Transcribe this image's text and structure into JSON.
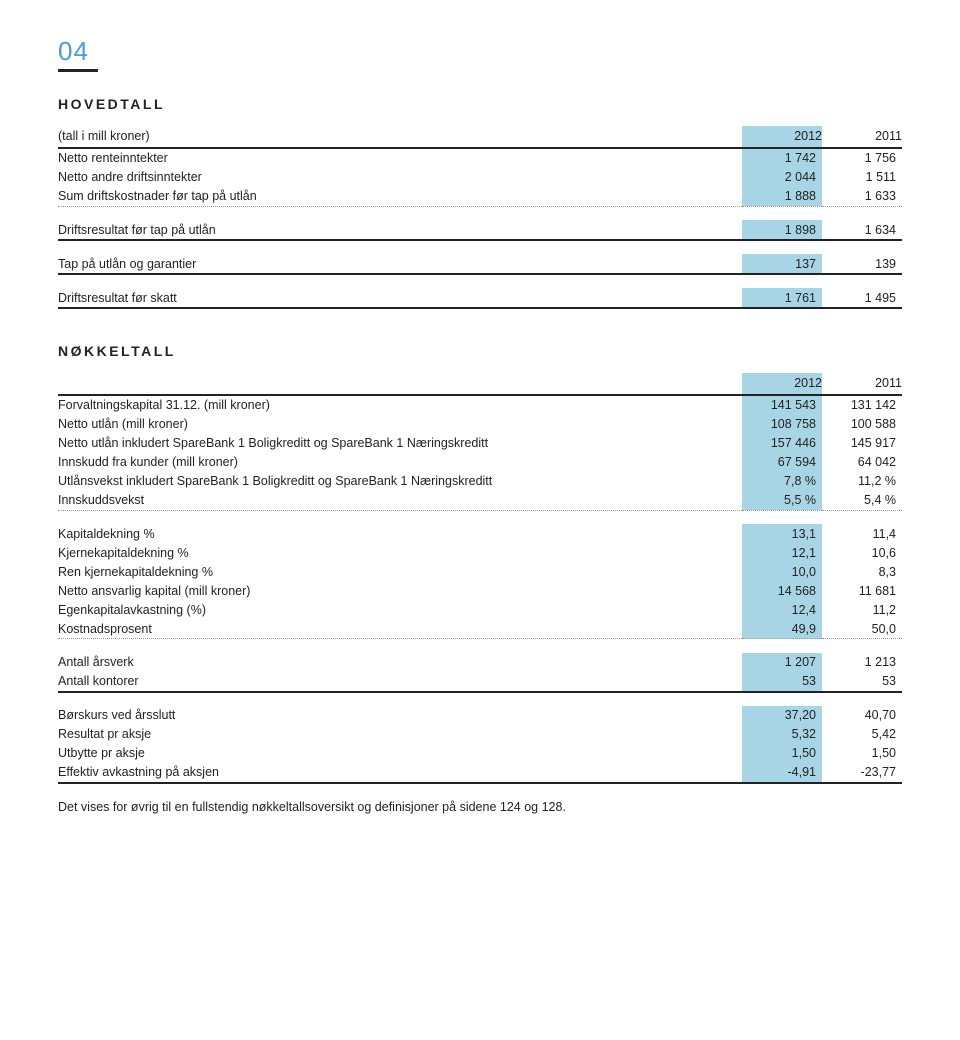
{
  "page_number": "04",
  "section1_title": "HOVEDTALL",
  "section1_subtitle": "(tall i mill kroner)",
  "year_a": "2012",
  "year_b": "2011",
  "hovedtall_rows": [
    {
      "label": "Netto renteinntekter",
      "a": "1 742",
      "b": "1 756",
      "border": "none"
    },
    {
      "label": "Netto andre driftsinntekter",
      "a": "2 044",
      "b": "1 511",
      "border": "none"
    },
    {
      "label": "Sum driftskostnader før tap på utlån",
      "a": "1 888",
      "b": "1 633",
      "border": "dot"
    },
    {
      "label": "",
      "a": "",
      "b": "",
      "border": "gap"
    },
    {
      "label": "Driftsresultat før tap på utlån",
      "a": "1 898",
      "b": "1 634",
      "border": "thick"
    },
    {
      "label": "",
      "a": "",
      "b": "",
      "border": "gap"
    },
    {
      "label": "Tap på utlån og garantier",
      "a": "137",
      "b": "139",
      "border": "thick"
    },
    {
      "label": "",
      "a": "",
      "b": "",
      "border": "gap"
    },
    {
      "label": "Driftsresultat før skatt",
      "a": "1 761",
      "b": "1 495",
      "border": "thick"
    }
  ],
  "section2_title": "NØKKELTALL",
  "nokkeltall_rows": [
    {
      "label": "Forvaltningskapital 31.12. (mill kroner)",
      "a": "141 543",
      "b": "131 142",
      "border": "none"
    },
    {
      "label": "Netto utlån (mill kroner)",
      "a": "108 758",
      "b": "100 588",
      "border": "none"
    },
    {
      "label": "Netto utlån inkludert SpareBank 1 Boligkreditt og SpareBank 1 Næringskreditt",
      "a": "157 446",
      "b": "145 917",
      "border": "none"
    },
    {
      "label": "Innskudd fra kunder (mill kroner)",
      "a": "67 594",
      "b": "64 042",
      "border": "none"
    },
    {
      "label": "Utlånsvekst inkludert SpareBank 1 Boligkreditt og SpareBank 1 Næringskreditt",
      "a": "7,8 %",
      "b": "11,2 %",
      "border": "none"
    },
    {
      "label": "Innskuddsvekst",
      "a": "5,5 %",
      "b": "5,4 %",
      "border": "dot"
    },
    {
      "label": "",
      "a": "",
      "b": "",
      "border": "gap"
    },
    {
      "label": "Kapitaldekning %",
      "a": "13,1",
      "b": "11,4",
      "border": "none"
    },
    {
      "label": "Kjernekapitaldekning %",
      "a": "12,1",
      "b": "10,6",
      "border": "none"
    },
    {
      "label": "Ren kjernekapitaldekning %",
      "a": "10,0",
      "b": "8,3",
      "border": "none"
    },
    {
      "label": "Netto ansvarlig kapital (mill kroner)",
      "a": "14 568",
      "b": "11 681",
      "border": "none"
    },
    {
      "label": "Egenkapitalavkastning (%)",
      "a": "12,4",
      "b": "11,2",
      "border": "none"
    },
    {
      "label": "Kostnadsprosent",
      "a": "49,9",
      "b": "50,0",
      "border": "dot"
    },
    {
      "label": "",
      "a": "",
      "b": "",
      "border": "gap"
    },
    {
      "label": "Antall årsverk",
      "a": "1 207",
      "b": "1 213",
      "border": "none"
    },
    {
      "label": "Antall kontorer",
      "a": "53",
      "b": "53",
      "border": "thick"
    },
    {
      "label": "",
      "a": "",
      "b": "",
      "border": "gap"
    },
    {
      "label": "Børskurs ved årsslutt",
      "a": "37,20",
      "b": "40,70",
      "border": "none"
    },
    {
      "label": "Resultat pr aksje",
      "a": "5,32",
      "b": "5,42",
      "border": "none"
    },
    {
      "label": "Utbytte pr aksje",
      "a": "1,50",
      "b": "1,50",
      "border": "none"
    },
    {
      "label": "Effektiv avkastning på aksjen",
      "a": "-4,91",
      "b": "-23,77",
      "border": "thick"
    }
  ],
  "footer": "Det vises for øvrig til en fullstendig nøkkeltallsoversikt og definisjoner på sidene 124 og 128.",
  "colors": {
    "accent_blue": "#4b9bd4",
    "col_highlight": "#a8d5e5",
    "text": "#222222",
    "dot_border": "#999999"
  }
}
